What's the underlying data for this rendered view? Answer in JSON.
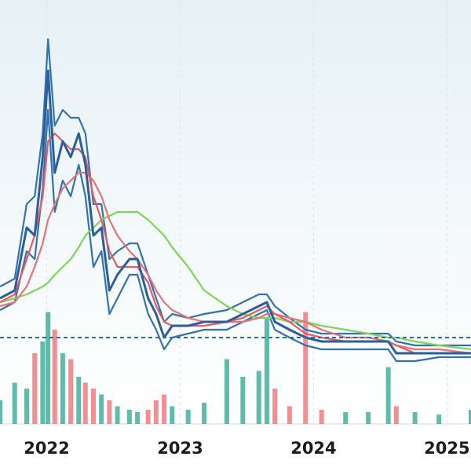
{
  "chart_data": {
    "type": "line",
    "x": [
      2021.65,
      2021.76,
      2021.85,
      2021.91,
      2021.97,
      2022.01,
      2022.06,
      2022.12,
      2022.18,
      2022.24,
      2022.29,
      2022.35,
      2022.41,
      2022.47,
      2022.53,
      2022.62,
      2022.68,
      2022.76,
      2022.82,
      2022.88,
      2022.94,
      2023.06,
      2023.18,
      2023.35,
      2023.47,
      2023.59,
      2023.65,
      2023.71,
      2023.82,
      2023.94,
      2024.06,
      2024.24,
      2024.41,
      2024.56,
      2024.62,
      2024.76,
      2024.94,
      2025.18
    ],
    "xlim": [
      2021.65,
      2025.18
    ],
    "xticks": [
      2022,
      2023,
      2024,
      2025
    ],
    "ylim": [
      0,
      108
    ],
    "y2lim": [
      0,
      360
    ],
    "grid": true,
    "reference_line": 22,
    "series": [
      {
        "color": "#3273ad",
        "values": [
          35,
          37,
          56,
          58,
          74,
          98,
          76,
          80,
          78,
          78,
          74,
          56,
          56,
          42,
          44,
          46,
          46,
          38,
          32,
          26,
          28,
          27,
          28,
          29,
          31,
          33,
          33,
          30,
          27,
          24,
          23,
          23,
          23,
          23,
          21,
          20,
          20,
          20
        ]
      },
      {
        "color": "#3273ad",
        "values": [
          29,
          31,
          44,
          42,
          60,
          80,
          54,
          62,
          58,
          66,
          58,
          40,
          44,
          28,
          32,
          38,
          38,
          28,
          24,
          19,
          22,
          23,
          24,
          24,
          26,
          28,
          29,
          24,
          22,
          20,
          19,
          19,
          19,
          19,
          16,
          16,
          17,
          17
        ]
      },
      {
        "color": "#7fd65a",
        "values": [
          31,
          32,
          33,
          34,
          35,
          36,
          38,
          40,
          42,
          45,
          48,
          50,
          52,
          53,
          54,
          54,
          54,
          52,
          50,
          48,
          45,
          40,
          34,
          30,
          28,
          27,
          27,
          27,
          26,
          26,
          25,
          24,
          23,
          22,
          22,
          21,
          20,
          19
        ]
      },
      {
        "color": "#e8727a",
        "values": [
          30,
          31,
          35,
          40,
          46,
          52,
          56,
          60,
          62,
          64,
          64,
          62,
          58,
          52,
          48,
          44,
          42,
          38,
          34,
          31,
          29,
          27,
          26,
          26,
          26,
          27,
          28,
          28,
          27,
          26,
          24,
          22,
          22,
          21,
          20,
          19,
          19,
          18
        ]
      },
      {
        "color": "#e85a66",
        "values": [
          31,
          33,
          42,
          48,
          58,
          72,
          74,
          72,
          70,
          70,
          68,
          58,
          52,
          44,
          40,
          40,
          40,
          36,
          30,
          26,
          25,
          25,
          25,
          26,
          27,
          29,
          30,
          28,
          26,
          23,
          22,
          21,
          21,
          21,
          20,
          18,
          18,
          18
        ]
      },
      {
        "color": "#2a5f9a",
        "values": [
          32,
          34,
          50,
          48,
          68,
          90,
          64,
          72,
          68,
          74,
          66,
          48,
          50,
          34,
          38,
          42,
          42,
          32,
          28,
          22,
          25,
          25,
          26,
          26,
          28,
          30,
          31,
          26,
          24,
          22,
          21,
          21,
          21,
          21,
          18,
          18,
          18,
          18
        ]
      },
      {
        "color": "#2aa58f",
        "down_color": "#ef6a6f",
        "axis": "y2",
        "values": [
          20,
          35,
          30,
          60,
          70,
          95,
          80,
          60,
          55,
          40,
          35,
          30,
          25,
          20,
          15,
          12,
          10,
          12,
          20,
          25,
          15,
          12,
          18,
          55,
          40,
          45,
          90,
          30,
          15,
          95,
          12,
          10,
          10,
          48,
          15,
          10,
          8,
          12
        ]
      }
    ]
  }
}
